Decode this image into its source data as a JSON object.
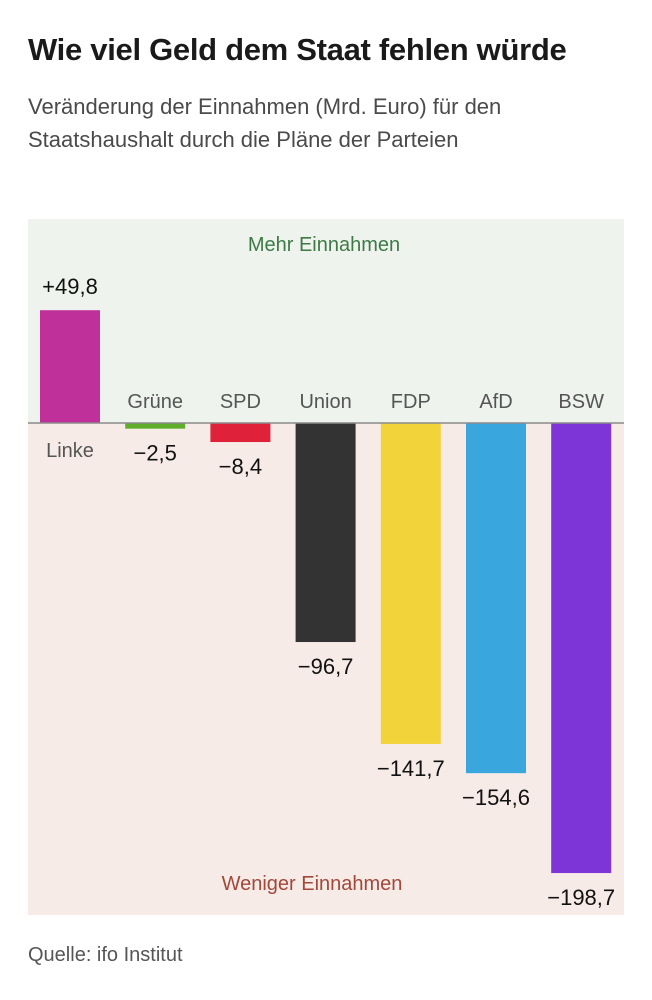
{
  "title": "Wie viel Geld dem Staat fehlen würde",
  "subtitle": "Veränderung der Einnahmen (Mrd. Euro) für den Staatshaushalt durch die Pläne der Parteien",
  "source": "Quelle: ifo Institut",
  "colors": {
    "positive_zone": "#eef3ee",
    "negative_zone": "#f7ebe7",
    "positive_label": "#3f7a46",
    "negative_label": "#a2483a"
  },
  "chart_data": {
    "type": "bar",
    "zone_labels": {
      "positive": "Mehr Einnahmen",
      "negative": "Weniger Einnahmen"
    },
    "categories": [
      "Linke",
      "Grüne",
      "SPD",
      "Union",
      "FDP",
      "AfD",
      "BSW"
    ],
    "values": [
      49.8,
      -2.5,
      -8.4,
      -96.7,
      -141.7,
      -154.6,
      -198.7
    ],
    "value_labels": [
      "+49,8",
      "−2,5",
      "−8,4",
      "−96,7",
      "−141,7",
      "−154,6",
      "−198,7"
    ],
    "colors": [
      "#c0309a",
      "#5fae2c",
      "#e0213a",
      "#333333",
      "#f2d33a",
      "#39a6de",
      "#7e35d8"
    ],
    "ylim": [
      -220,
      90
    ]
  }
}
